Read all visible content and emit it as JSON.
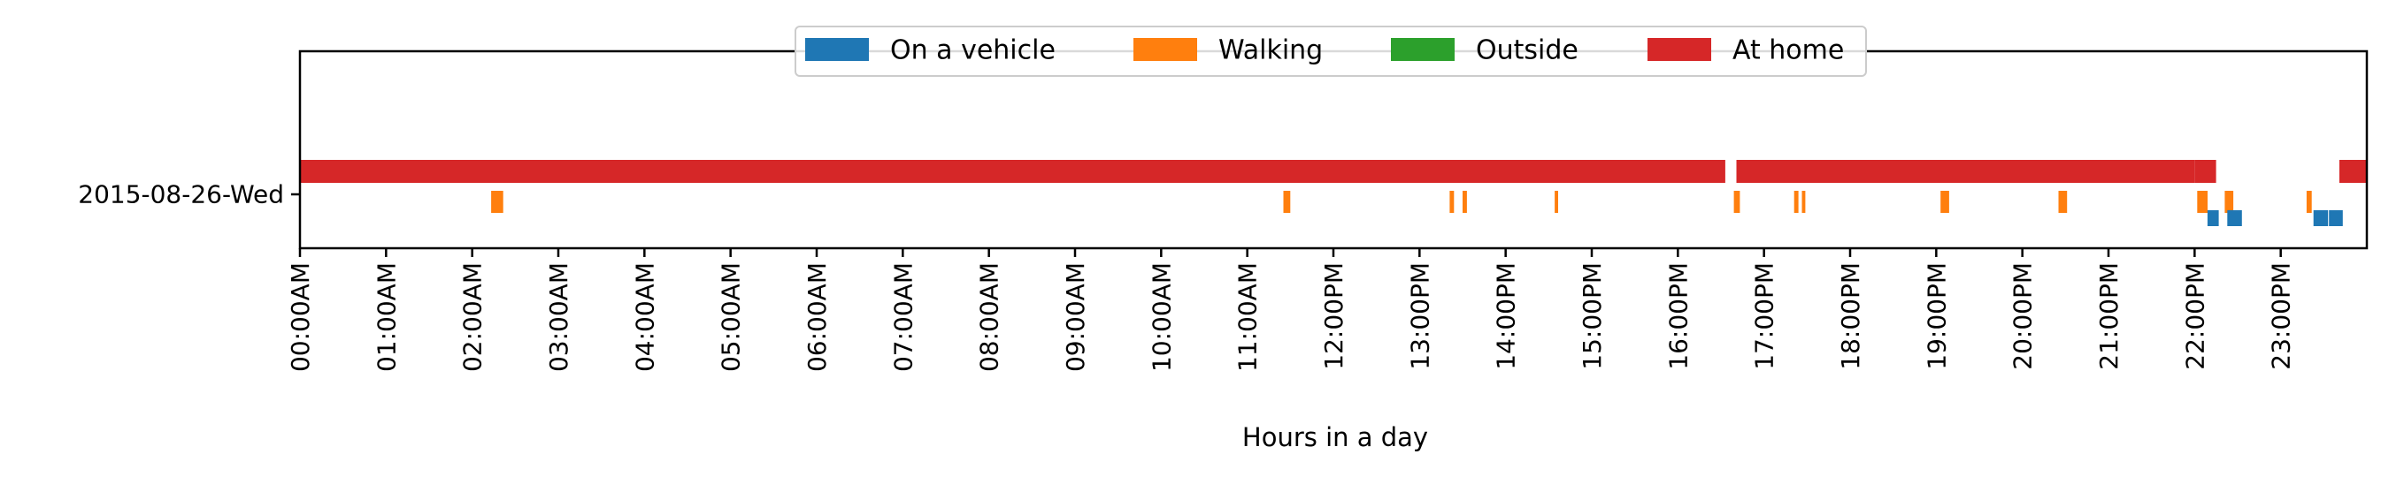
{
  "chart_data": {
    "type": "timeline",
    "xlabel": "Hours in a day",
    "xlim": [
      0,
      24
    ],
    "ylabel": "",
    "row_label": "2015-08-26-Wed",
    "x_tick_labels": [
      "00:00AM",
      "01:00AM",
      "02:00AM",
      "03:00AM",
      "04:00AM",
      "05:00AM",
      "06:00AM",
      "07:00AM",
      "08:00AM",
      "09:00AM",
      "10:00AM",
      "11:00AM",
      "12:00PM",
      "13:00PM",
      "14:00PM",
      "15:00PM",
      "16:00PM",
      "17:00PM",
      "18:00PM",
      "19:00PM",
      "20:00PM",
      "21:00PM",
      "22:00PM",
      "23:00PM"
    ],
    "legend": {
      "placement": "upper center",
      "entries": [
        {
          "name": "On a vehicle",
          "color": "#1f77b4"
        },
        {
          "name": "Walking",
          "color": "#ff7f0e"
        },
        {
          "name": "Outside",
          "color": "#2ca02c"
        },
        {
          "name": "At home",
          "color": "#d62728"
        }
      ]
    },
    "series": [
      {
        "name": "At home",
        "color": "#d62728",
        "intervals": [
          [
            0.0,
            16.55
          ],
          [
            16.68,
            22.0
          ],
          [
            22.0,
            22.25
          ],
          [
            23.68,
            24.0
          ]
        ]
      },
      {
        "name": "Walking",
        "color": "#ff7f0e",
        "intervals": [
          [
            2.22,
            2.36
          ],
          [
            11.42,
            11.5
          ],
          [
            13.35,
            13.4
          ],
          [
            13.5,
            13.55
          ],
          [
            14.57,
            14.61
          ],
          [
            16.65,
            16.72
          ],
          [
            17.35,
            17.4
          ],
          [
            17.44,
            17.48
          ],
          [
            19.05,
            19.15
          ],
          [
            20.42,
            20.52
          ],
          [
            22.03,
            22.15
          ],
          [
            22.35,
            22.45
          ],
          [
            23.3,
            23.36
          ]
        ]
      },
      {
        "name": "On a vehicle",
        "color": "#1f77b4",
        "intervals": [
          [
            22.15,
            22.28
          ],
          [
            22.38,
            22.55
          ],
          [
            23.38,
            23.55
          ],
          [
            23.56,
            23.72
          ]
        ]
      },
      {
        "name": "Outside",
        "color": "#2ca02c",
        "intervals": []
      }
    ]
  }
}
